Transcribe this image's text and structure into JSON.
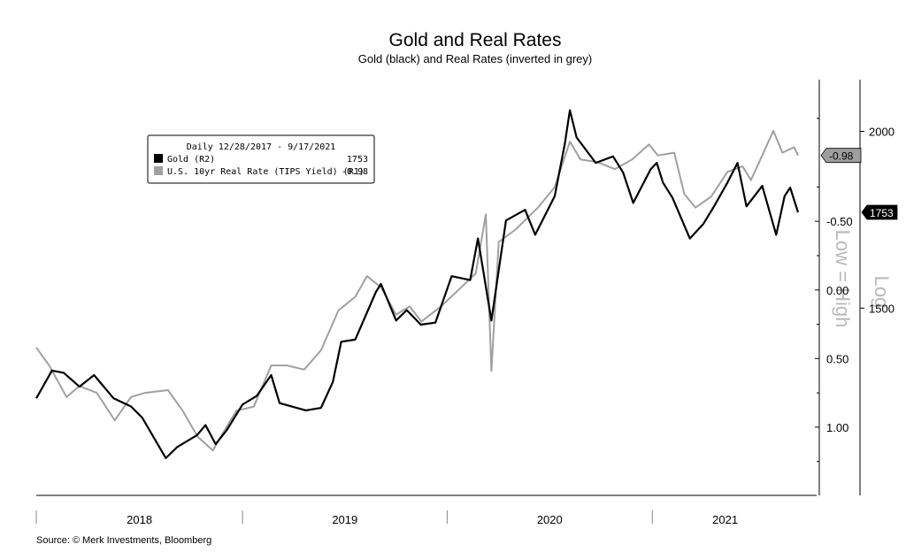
{
  "chart_data": {
    "type": "line",
    "title": "Gold and Real Rates",
    "subtitle": "Gold (black) and Real Rates (inverted in grey)",
    "source": "Source: © Merk Investments, Bloomberg",
    "x_tick_labels": [
      "2018",
      "2019",
      "2020",
      "2021"
    ],
    "x_range": [
      "2017-12-28",
      "2021-09-17"
    ],
    "legend": {
      "header": "Daily 12/28/2017 - 9/17/2021",
      "placement": "top-left",
      "entries": [
        {
          "label": "Gold (R2)",
          "value": "1753",
          "color": "#000000"
        },
        {
          "label": "U.S. 10yr Real Rate (TIPS Yield) (R1)",
          "value": "-0.98",
          "color": "#a0a0a0"
        }
      ]
    },
    "axis_r1": {
      "label": "Low = High",
      "inverted": true,
      "range": [
        1.4,
        -1.5
      ],
      "ticks": [
        "-0.50",
        "0.00",
        "0.50",
        "1.00"
      ]
    },
    "axis_r2": {
      "label": "Log",
      "log_scale": true,
      "range": [
        1130,
        2160
      ],
      "ticks": [
        "2000",
        "1500"
      ]
    },
    "last_value_tags": [
      {
        "series": "real_rate",
        "text": "-0.98"
      },
      {
        "series": "gold",
        "text": "1753"
      }
    ],
    "series": [
      {
        "name": "Gold",
        "axis": "R2",
        "color": "#000000",
        "points": [
          [
            "2017-12-28",
            1295
          ],
          [
            "2018-01-25",
            1355
          ],
          [
            "2018-02-15",
            1350
          ],
          [
            "2018-03-15",
            1320
          ],
          [
            "2018-04-10",
            1345
          ],
          [
            "2018-05-15",
            1295
          ],
          [
            "2018-06-15",
            1278
          ],
          [
            "2018-07-05",
            1255
          ],
          [
            "2018-08-16",
            1175
          ],
          [
            "2018-09-05",
            1196
          ],
          [
            "2018-10-11",
            1220
          ],
          [
            "2018-10-26",
            1240
          ],
          [
            "2018-11-13",
            1202
          ],
          [
            "2018-12-03",
            1230
          ],
          [
            "2018-12-31",
            1282
          ],
          [
            "2019-01-25",
            1300
          ],
          [
            "2019-02-20",
            1345
          ],
          [
            "2019-03-07",
            1285
          ],
          [
            "2019-04-23",
            1270
          ],
          [
            "2019-05-20",
            1275
          ],
          [
            "2019-06-10",
            1330
          ],
          [
            "2019-06-25",
            1420
          ],
          [
            "2019-07-20",
            1425
          ],
          [
            "2019-08-26",
            1540
          ],
          [
            "2019-09-04",
            1560
          ],
          [
            "2019-10-01",
            1470
          ],
          [
            "2019-10-20",
            1495
          ],
          [
            "2019-11-14",
            1460
          ],
          [
            "2019-12-10",
            1465
          ],
          [
            "2020-01-08",
            1580
          ],
          [
            "2020-02-10",
            1570
          ],
          [
            "2020-02-24",
            1680
          ],
          [
            "2020-03-19",
            1470
          ],
          [
            "2020-04-14",
            1730
          ],
          [
            "2020-05-18",
            1760
          ],
          [
            "2020-06-05",
            1690
          ],
          [
            "2020-07-10",
            1800
          ],
          [
            "2020-07-28",
            1960
          ],
          [
            "2020-08-06",
            2070
          ],
          [
            "2020-08-18",
            1980
          ],
          [
            "2020-09-21",
            1900
          ],
          [
            "2020-10-22",
            1920
          ],
          [
            "2020-11-09",
            1870
          ],
          [
            "2020-11-27",
            1780
          ],
          [
            "2020-12-28",
            1880
          ],
          [
            "2021-01-08",
            1900
          ],
          [
            "2021-01-19",
            1840
          ],
          [
            "2021-02-05",
            1795
          ],
          [
            "2021-03-08",
            1680
          ],
          [
            "2021-04-01",
            1720
          ],
          [
            "2021-04-20",
            1770
          ],
          [
            "2021-05-14",
            1840
          ],
          [
            "2021-06-01",
            1900
          ],
          [
            "2021-06-17",
            1770
          ],
          [
            "2021-07-15",
            1830
          ],
          [
            "2021-08-09",
            1690
          ],
          [
            "2021-08-24",
            1800
          ],
          [
            "2021-09-03",
            1825
          ],
          [
            "2021-09-17",
            1753
          ]
        ]
      },
      {
        "name": "U.S. 10yr Real Rate (TIPS Yield)",
        "axis": "R1",
        "color": "#a0a0a0",
        "points": [
          [
            "2017-12-28",
            0.42
          ],
          [
            "2018-01-20",
            0.55
          ],
          [
            "2018-02-20",
            0.78
          ],
          [
            "2018-03-15",
            0.7
          ],
          [
            "2018-04-15",
            0.75
          ],
          [
            "2018-05-17",
            0.95
          ],
          [
            "2018-06-15",
            0.78
          ],
          [
            "2018-07-10",
            0.75
          ],
          [
            "2018-08-20",
            0.73
          ],
          [
            "2018-09-15",
            0.88
          ],
          [
            "2018-10-12",
            1.07
          ],
          [
            "2018-11-08",
            1.17
          ],
          [
            "2018-11-25",
            1.05
          ],
          [
            "2018-12-20",
            0.88
          ],
          [
            "2019-01-20",
            0.85
          ],
          [
            "2019-02-20",
            0.55
          ],
          [
            "2019-03-20",
            0.55
          ],
          [
            "2019-04-20",
            0.58
          ],
          [
            "2019-05-20",
            0.44
          ],
          [
            "2019-06-20",
            0.15
          ],
          [
            "2019-07-20",
            0.05
          ],
          [
            "2019-08-10",
            -0.1
          ],
          [
            "2019-09-04",
            -0.02
          ],
          [
            "2019-10-01",
            0.18
          ],
          [
            "2019-10-25",
            0.12
          ],
          [
            "2019-11-15",
            0.23
          ],
          [
            "2019-12-20",
            0.12
          ],
          [
            "2020-01-20",
            0.0
          ],
          [
            "2020-02-20",
            -0.12
          ],
          [
            "2020-03-09",
            -0.55
          ],
          [
            "2020-03-19",
            0.59
          ],
          [
            "2020-04-01",
            -0.35
          ],
          [
            "2020-05-01",
            -0.44
          ],
          [
            "2020-06-10",
            -0.6
          ],
          [
            "2020-07-10",
            -0.75
          ],
          [
            "2020-08-06",
            -1.08
          ],
          [
            "2020-08-25",
            -0.95
          ],
          [
            "2020-09-25",
            -0.93
          ],
          [
            "2020-10-25",
            -0.88
          ],
          [
            "2020-11-25",
            -0.95
          ],
          [
            "2020-12-25",
            -1.06
          ],
          [
            "2021-01-10",
            -0.98
          ],
          [
            "2021-02-08",
            -1.0
          ],
          [
            "2021-02-26",
            -0.7
          ],
          [
            "2021-03-18",
            -0.6
          ],
          [
            "2021-04-15",
            -0.68
          ],
          [
            "2021-05-14",
            -0.86
          ],
          [
            "2021-06-10",
            -0.9
          ],
          [
            "2021-06-25",
            -0.8
          ],
          [
            "2021-07-15",
            -0.98
          ],
          [
            "2021-08-04",
            -1.16
          ],
          [
            "2021-08-20",
            -1.0
          ],
          [
            "2021-09-10",
            -1.04
          ],
          [
            "2021-09-17",
            -0.98
          ]
        ]
      }
    ]
  }
}
